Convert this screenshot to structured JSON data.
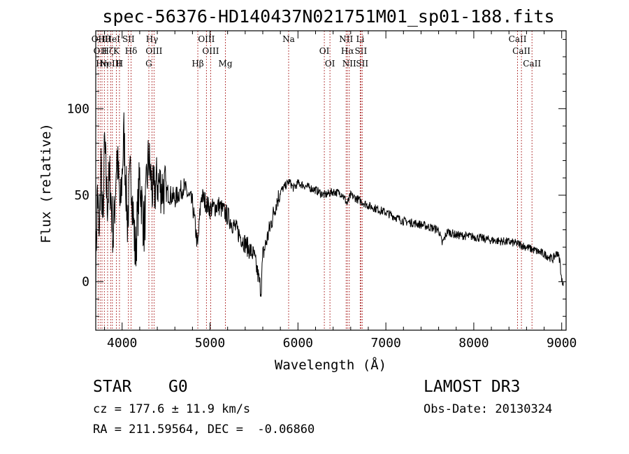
{
  "chart_data": {
    "type": "line",
    "title": "spec-56376-HD140437N021751M01_sp01-188.fits",
    "xlabel": "Wavelength (Å)",
    "ylabel": "Flux (relative)",
    "xlim": [
      3700,
      9050
    ],
    "ylim": [
      -28,
      145
    ],
    "xticks": [
      4000,
      5000,
      6000,
      7000,
      8000,
      9000
    ],
    "yticks": [
      0,
      50,
      100
    ],
    "series": [
      {
        "name": "flux",
        "x": [
          3700,
          3720,
          3740,
          3760,
          3780,
          3800,
          3830,
          3860,
          3900,
          3940,
          3980,
          4020,
          4060,
          4100,
          4150,
          4200,
          4250,
          4300,
          4350,
          4400,
          4500,
          4600,
          4700,
          4800,
          4860,
          4900,
          5000,
          5100,
          5200,
          5300,
          5400,
          5500,
          5560,
          5580,
          5600,
          5650,
          5700,
          5750,
          5800,
          5850,
          5900,
          5950,
          6000,
          6100,
          6200,
          6300,
          6400,
          6500,
          6560,
          6600,
          6700,
          6800,
          6900,
          7000,
          7200,
          7400,
          7600,
          7640,
          7700,
          7800,
          8000,
          8200,
          8400,
          8500,
          8600,
          8700,
          8800,
          8900,
          8950,
          8980,
          9000,
          9020
        ],
        "y": [
          5,
          55,
          20,
          70,
          30,
          80,
          45,
          60,
          25,
          75,
          40,
          85,
          35,
          65,
          15,
          60,
          30,
          72,
          50,
          58,
          52,
          48,
          55,
          45,
          20,
          50,
          42,
          44,
          38,
          30,
          22,
          15,
          0,
          -5,
          15,
          25,
          35,
          45,
          52,
          55,
          58,
          54,
          57,
          55,
          53,
          50,
          52,
          51,
          45,
          50,
          47,
          44,
          42,
          40,
          35,
          33,
          30,
          22,
          29,
          27,
          26,
          24,
          23,
          22,
          20,
          18,
          16,
          13,
          17,
          12,
          0,
          0
        ]
      }
    ],
    "spectral_lines": [
      {
        "wavelength": 3727,
        "label": "OII"
      },
      {
        "wavelength": 3750,
        "label": "OII"
      },
      {
        "wavelength": 3771,
        "label": "Hη"
      },
      {
        "wavelength": 3798,
        "label": "Hθ"
      },
      {
        "wavelength": 3835,
        "label": "Hζ"
      },
      {
        "wavelength": 3869,
        "label": "NeIII"
      },
      {
        "wavelength": 3889,
        "label": "HeI"
      },
      {
        "wavelength": 3934,
        "label": "K"
      },
      {
        "wavelength": 3970,
        "label": "H"
      },
      {
        "wavelength": 4072,
        "label": "SII"
      },
      {
        "wavelength": 4102,
        "label": "Hδ"
      },
      {
        "wavelength": 4304,
        "label": "G"
      },
      {
        "wavelength": 4340,
        "label": "Hγ"
      },
      {
        "wavelength": 4363,
        "label": "OIII"
      },
      {
        "wavelength": 4861,
        "label": "Hβ"
      },
      {
        "wavelength": 4959,
        "label": "OIII"
      },
      {
        "wavelength": 5007,
        "label": "OIII"
      },
      {
        "wavelength": 5175,
        "label": "Mg"
      },
      {
        "wavelength": 5894,
        "label": "Na"
      },
      {
        "wavelength": 6300,
        "label": "OI"
      },
      {
        "wavelength": 6364,
        "label": "OI"
      },
      {
        "wavelength": 6548,
        "label": "NII"
      },
      {
        "wavelength": 6563,
        "label": "Hα"
      },
      {
        "wavelength": 6584,
        "label": "NII"
      },
      {
        "wavelength": 6708,
        "label": "Li"
      },
      {
        "wavelength": 6716,
        "label": "SII"
      },
      {
        "wavelength": 6731,
        "label": "SII"
      },
      {
        "wavelength": 8498,
        "label": "CaII"
      },
      {
        "wavelength": 8542,
        "label": "CaII"
      },
      {
        "wavelength": 8662,
        "label": "CaII"
      }
    ],
    "line_color": "#b03030"
  },
  "info": {
    "class": "STAR",
    "subclass": "G0",
    "cz": "cz = 177.6 ± 11.9 km/s",
    "coords": "RA = 211.59564, DEC =  -0.06860",
    "survey": "LAMOST DR3",
    "obsdate": "Obs-Date: 20130324"
  }
}
